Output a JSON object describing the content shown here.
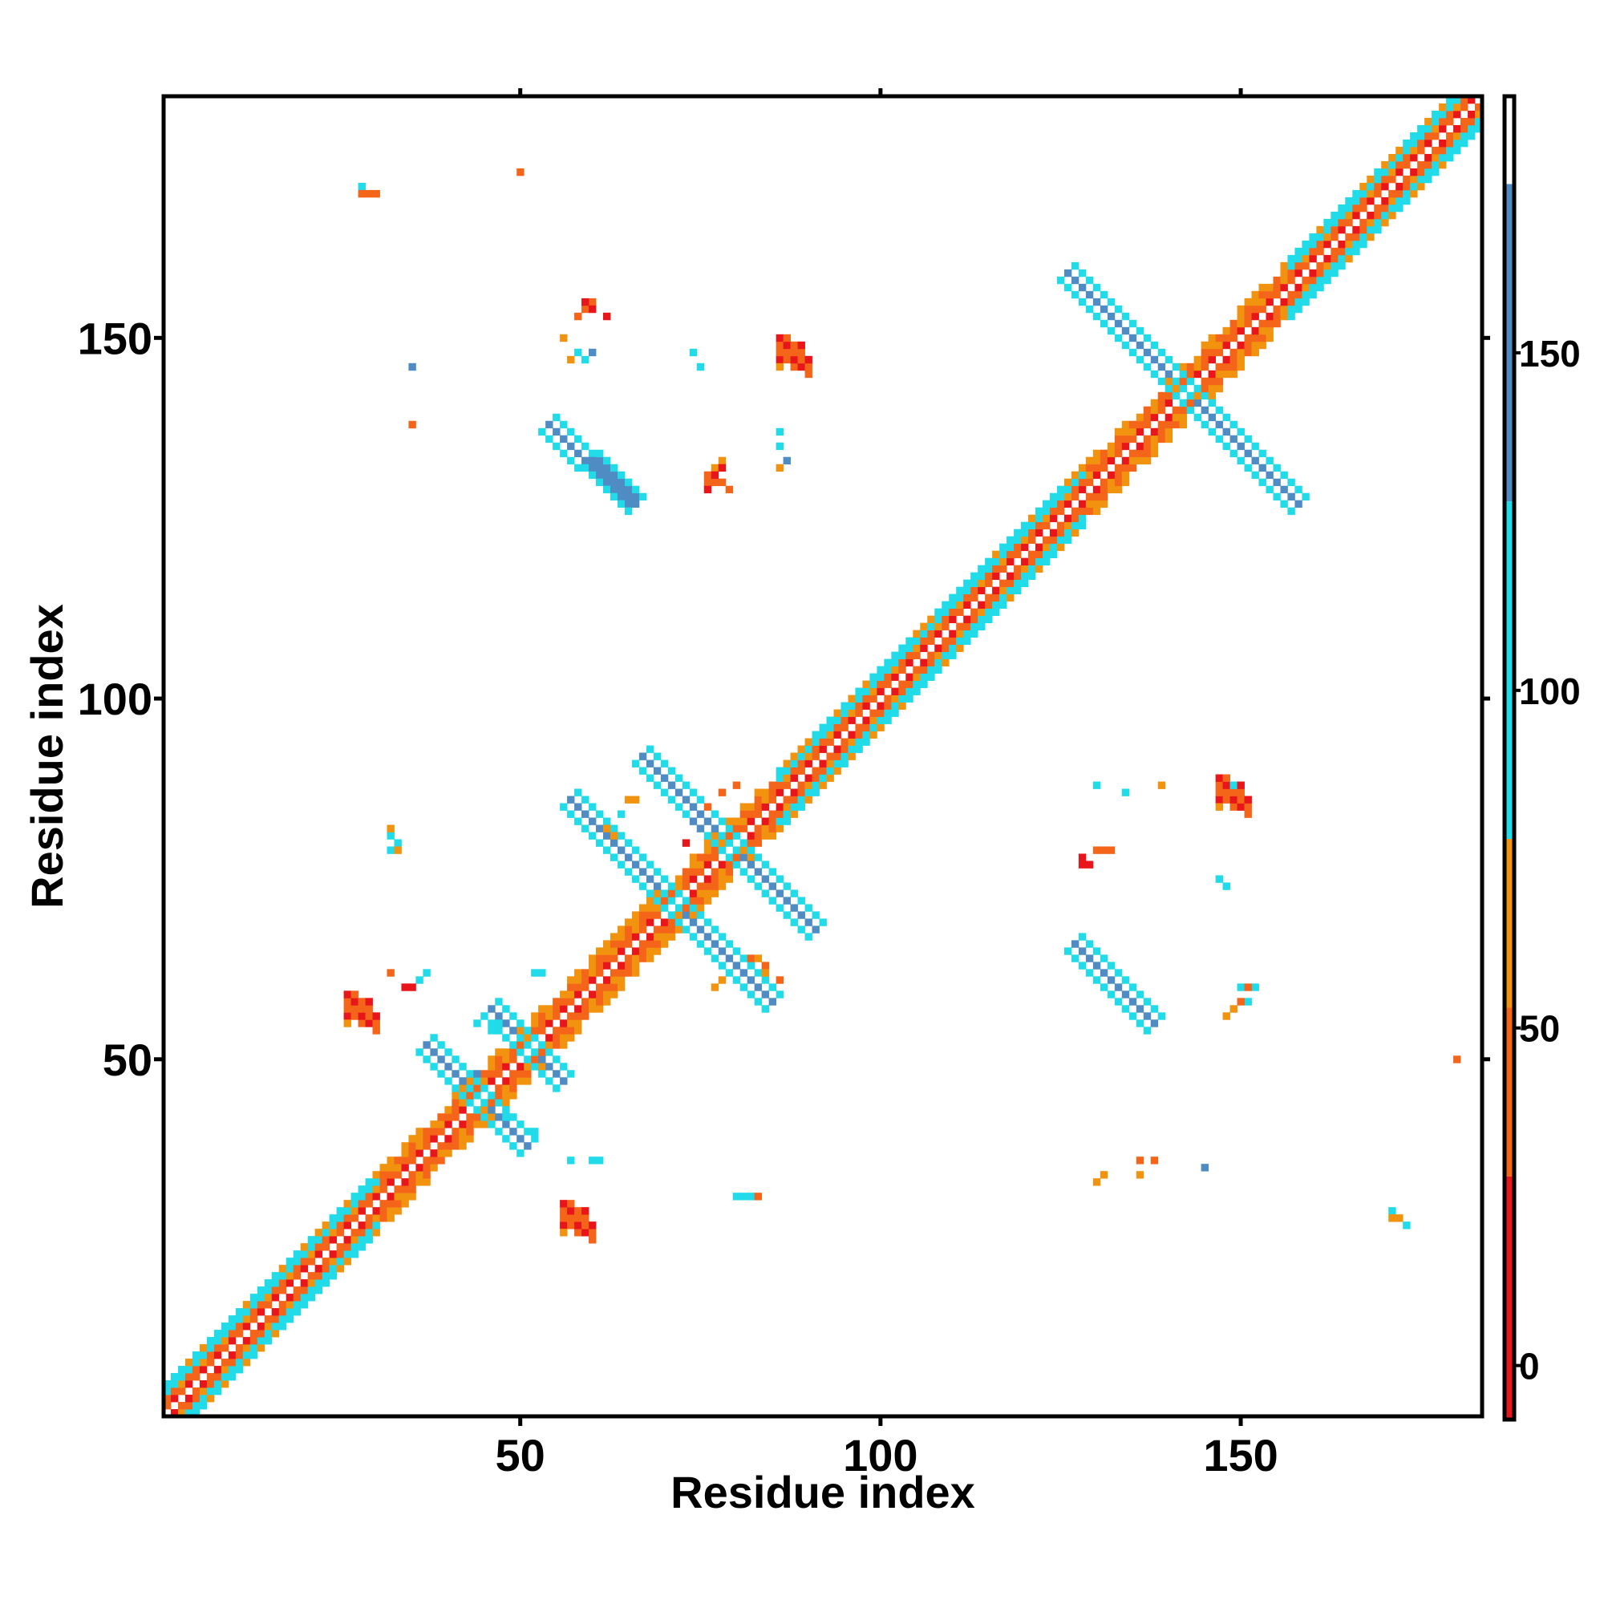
{
  "chart_data": {
    "type": "heatmap",
    "title": "",
    "xlabel": "Residue index",
    "ylabel": "Residue index",
    "xlim": [
      1,
      183
    ],
    "ylim": [
      1,
      183
    ],
    "x_ticks": [
      50,
      100,
      150
    ],
    "y_ticks": [
      50,
      100,
      150
    ],
    "colorbar": {
      "ticks": [
        0,
        50,
        100,
        150
      ],
      "range": [
        -8,
        188
      ],
      "bands": [
        {
          "from": -8,
          "to": 28,
          "color": "#e8161b"
        },
        {
          "from": 28,
          "to": 53,
          "color": "#f4651a"
        },
        {
          "from": 53,
          "to": 78,
          "color": "#f1930f"
        },
        {
          "from": 78,
          "to": 128,
          "color": "#22dbe9"
        },
        {
          "from": 128,
          "to": 175,
          "color": "#4f8cc4"
        },
        {
          "from": 175,
          "to": 188,
          "color": "#ffffff"
        }
      ]
    },
    "grid": false,
    "diagonal_band": {
      "from": 1,
      "to": 183,
      "halfwidth": 4
    },
    "features": [
      {
        "kind": "helix_band",
        "from": 86,
        "to": 128
      },
      {
        "kind": "helix_band",
        "from": 157,
        "to": 183
      },
      {
        "kind": "helix_band",
        "from": 1,
        "to": 30
      },
      {
        "kind": "antidiagonal",
        "cx": 142,
        "cy": 143,
        "half": 16,
        "width": 2.6
      },
      {
        "kind": "antidiagonal",
        "cx": 71,
        "cy": 72,
        "half": 14,
        "width": 2.6
      },
      {
        "kind": "antidiagonal",
        "cx": 79,
        "cy": 80,
        "half": 12,
        "width": 2.6
      },
      {
        "kind": "antidiagonal",
        "cx": 44,
        "cy": 45,
        "half": 7,
        "width": 2.4
      },
      {
        "kind": "antidiagonal",
        "cx": 51,
        "cy": 52,
        "half": 5,
        "width": 2.4
      },
      {
        "kind": "offdiag_line",
        "x1": 54,
        "y1": 138,
        "x2": 66,
        "y2": 127,
        "width": 2.6
      },
      {
        "kind": "offdiag_line",
        "x1": 127,
        "y1": 66,
        "x2": 138,
        "y2": 55,
        "width": 2.6
      },
      {
        "kind": "patch",
        "x": 86,
        "y": 147,
        "w": 5,
        "h": 4,
        "color": "#f4651a"
      },
      {
        "kind": "patch",
        "x": 147,
        "y": 86,
        "w": 5,
        "h": 4,
        "color": "#f4651a"
      },
      {
        "kind": "patch",
        "x": 26,
        "y": 56,
        "w": 5,
        "h": 4,
        "color": "#f4651a"
      },
      {
        "kind": "patch",
        "x": 56,
        "y": 27,
        "w": 5,
        "h": 4,
        "color": "#f4651a"
      },
      {
        "kind": "dots",
        "color": "#22dbe9",
        "pts": [
          [
            28,
            171
          ],
          [
            58,
            148
          ],
          [
            59,
            147
          ],
          [
            74,
            148
          ],
          [
            75,
            146
          ],
          [
            86,
            137
          ],
          [
            86,
            135
          ],
          [
            32,
            81
          ],
          [
            33,
            80
          ],
          [
            32,
            79
          ],
          [
            80,
            31
          ],
          [
            81,
            31
          ],
          [
            82,
            31
          ],
          [
            130,
            88
          ],
          [
            134,
            87
          ],
          [
            147,
            75
          ],
          [
            148,
            74
          ],
          [
            150,
            60
          ],
          [
            151,
            58
          ],
          [
            44,
            55
          ],
          [
            47,
            55
          ],
          [
            46,
            54
          ],
          [
            52,
            62
          ],
          [
            53,
            62
          ],
          [
            60,
            36
          ],
          [
            61,
            36
          ],
          [
            57,
            36
          ],
          [
            149,
            88
          ],
          [
            52,
            40
          ],
          [
            48,
            42
          ],
          [
            152,
            60
          ],
          [
            171,
            29
          ],
          [
            173,
            27
          ],
          [
            36,
            61
          ],
          [
            37,
            62
          ],
          [
            64,
            84
          ]
        ]
      },
      {
        "kind": "dots",
        "color": "#f4651a",
        "pts": [
          [
            60,
            155
          ],
          [
            59,
            154
          ],
          [
            58,
            153
          ],
          [
            28,
            170
          ],
          [
            29,
            170
          ],
          [
            30,
            170
          ],
          [
            50,
            173
          ],
          [
            76,
            131
          ],
          [
            76,
            130
          ],
          [
            77,
            130
          ],
          [
            78,
            130
          ],
          [
            79,
            129
          ],
          [
            130,
            79
          ],
          [
            131,
            79
          ],
          [
            132,
            79
          ],
          [
            150,
            58
          ],
          [
            151,
            60
          ],
          [
            32,
            62
          ],
          [
            35,
            138
          ],
          [
            82,
            64
          ],
          [
            84,
            63
          ],
          [
            86,
            61
          ],
          [
            180,
            50
          ],
          [
            76,
            85
          ],
          [
            78,
            87
          ],
          [
            80,
            88
          ],
          [
            136,
            36
          ],
          [
            138,
            36
          ],
          [
            83,
            31
          ]
        ]
      },
      {
        "kind": "dots",
        "color": "#f1930f",
        "pts": [
          [
            57,
            147
          ],
          [
            56,
            150
          ],
          [
            87,
            133
          ],
          [
            86,
            132
          ],
          [
            77,
            132
          ],
          [
            78,
            133
          ],
          [
            32,
            82
          ],
          [
            33,
            79
          ],
          [
            131,
            34
          ],
          [
            130,
            33
          ],
          [
            148,
            56
          ],
          [
            149,
            57
          ],
          [
            84,
            62
          ],
          [
            83,
            64
          ],
          [
            62,
            82
          ],
          [
            63,
            81
          ],
          [
            78,
            61
          ],
          [
            77,
            60
          ],
          [
            65,
            86
          ],
          [
            66,
            86
          ],
          [
            171,
            28
          ],
          [
            172,
            28
          ],
          [
            139,
            88
          ],
          [
            136,
            34
          ]
        ]
      },
      {
        "kind": "dots",
        "color": "#e8161b",
        "pts": [
          [
            78,
            132
          ],
          [
            77,
            131
          ],
          [
            76,
            129
          ],
          [
            128,
            78
          ],
          [
            129,
            77
          ],
          [
            128,
            77
          ],
          [
            60,
            154
          ],
          [
            34,
            60
          ],
          [
            35,
            60
          ],
          [
            59,
            155
          ],
          [
            62,
            153
          ],
          [
            73,
            80
          ]
        ]
      },
      {
        "kind": "dots",
        "color": "#4f8cc4",
        "pts": [
          [
            35,
            146
          ],
          [
            145,
            35
          ],
          [
            87,
            133
          ],
          [
            74,
            83
          ],
          [
            75,
            82
          ],
          [
            44,
            48
          ],
          [
            60,
            148
          ]
        ]
      }
    ]
  }
}
